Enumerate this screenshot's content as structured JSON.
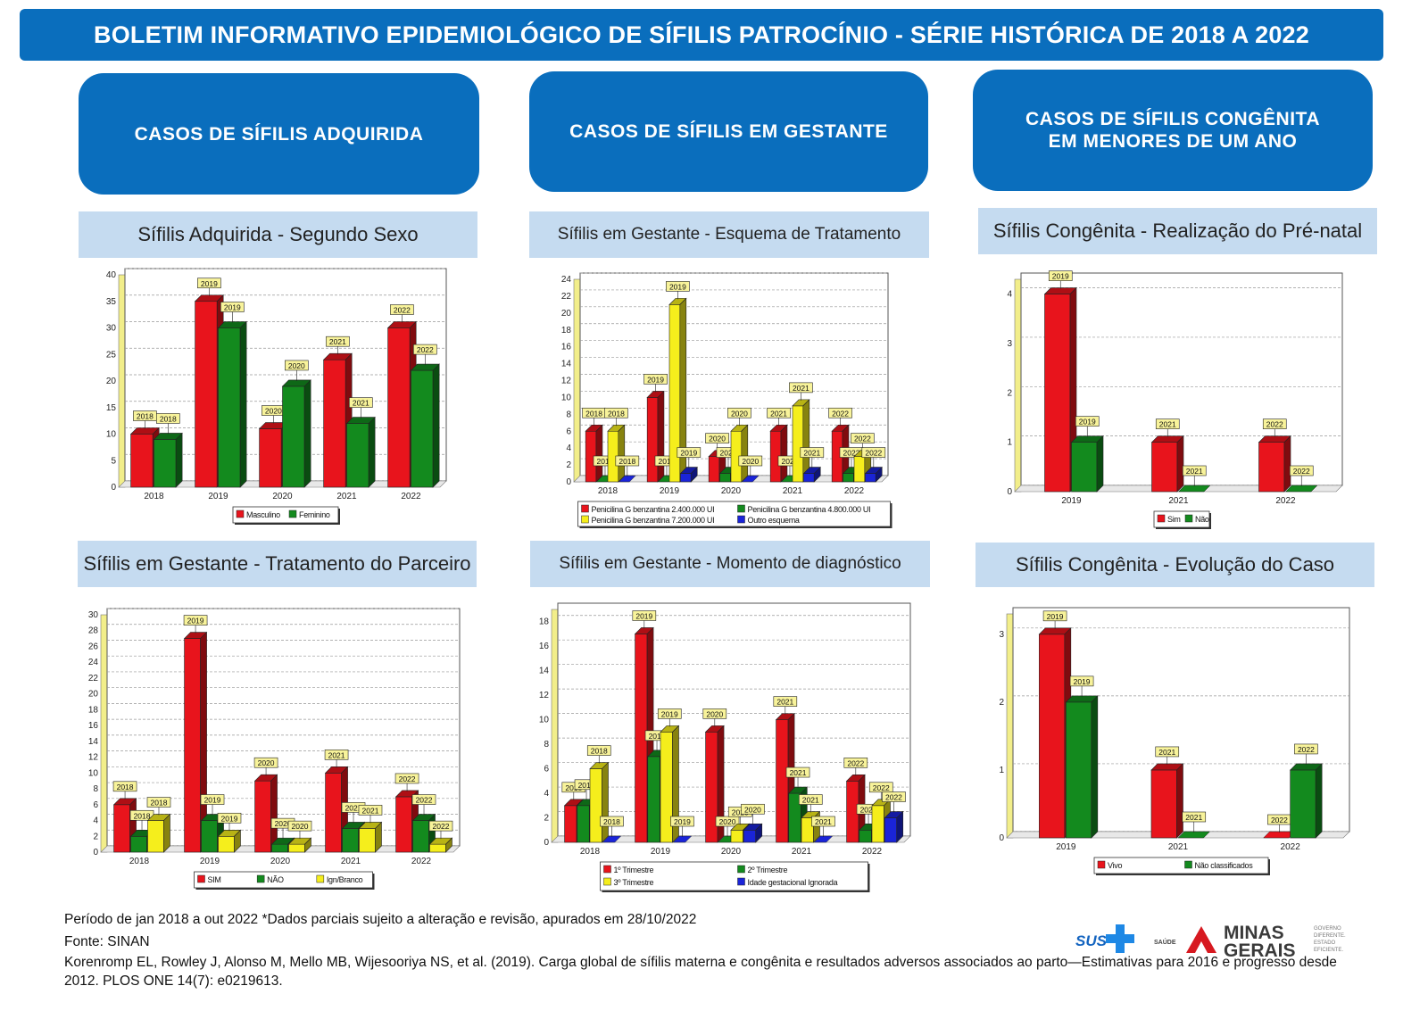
{
  "banner": {
    "title": "BOLETIM INFORMATIVO EPIDEMIOLÓGICO DE SÍFILIS PATROCÍNIO - SÉRIE HISTÓRICA DE 2018 A 2022"
  },
  "sections": [
    {
      "title": "CASOS DE SÍFILIS ADQUIRIDA"
    },
    {
      "title": "CASOS DE SÍFILIS EM GESTANTE"
    },
    {
      "title": "CASOS DE SÍFILIS CONGÊNITA\nEM MENORES DE UM ANO"
    }
  ],
  "colors": {
    "red": "#e8141c",
    "green": "#138a1e",
    "yellow": "#f5ee1c",
    "blue": "#1a24d8",
    "header_blue": "#0a6ebd",
    "title_bg": "#c5dbf0"
  },
  "chart_data": [
    {
      "type": "bar",
      "title": "Sífilis Adquirida - Segundo Sexo",
      "categories": [
        "2018",
        "2019",
        "2020",
        "2021",
        "2022"
      ],
      "ylim": [
        0,
        40
      ],
      "yticks": [
        0,
        5,
        10,
        15,
        20,
        25,
        30,
        35,
        40
      ],
      "legend_position": "bottom",
      "grid": true,
      "series": [
        {
          "name": "Masculino",
          "color": "#e8141c",
          "values": [
            10,
            35,
            11,
            24,
            30
          ]
        },
        {
          "name": "Feminino",
          "color": "#138a1e",
          "values": [
            9,
            30,
            19,
            12,
            22
          ]
        }
      ]
    },
    {
      "type": "bar",
      "title": "Sífilis em Gestante - Esquema de Tratamento",
      "categories": [
        "2018",
        "2019",
        "2020",
        "2021",
        "2022"
      ],
      "ylim": [
        0,
        24
      ],
      "yticks": [
        0,
        2,
        4,
        6,
        8,
        10,
        12,
        14,
        16,
        18,
        20,
        22,
        24
      ],
      "legend_position": "bottom",
      "grid": true,
      "series": [
        {
          "name": "Penicilina G benzantina 2.400.000 UI",
          "color": "#e8141c",
          "values": [
            6,
            10,
            3,
            6,
            6
          ]
        },
        {
          "name": "Penicilina G benzantina 4.800.000 UI",
          "color": "#138a1e",
          "values": [
            0,
            0,
            1,
            0,
            1
          ]
        },
        {
          "name": "Penicilina G benzantina 7.200.000 UI",
          "color": "#f5ee1c",
          "values": [
            6,
            21,
            6,
            9,
            3
          ]
        },
        {
          "name": "Outro esquema",
          "color": "#1a24d8",
          "values": [
            0,
            1,
            0,
            1,
            1
          ]
        }
      ]
    },
    {
      "type": "bar",
      "title": "Sífilis Congênita - Realização do Pré-natal",
      "categories": [
        "2019",
        "2021",
        "2022"
      ],
      "ylim": [
        0,
        4.3
      ],
      "yticks": [
        0,
        1,
        2,
        3,
        4
      ],
      "legend_position": "bottom",
      "grid": true,
      "series": [
        {
          "name": "Sim",
          "color": "#e8141c",
          "values": [
            4,
            1,
            1
          ]
        },
        {
          "name": "Não",
          "color": "#138a1e",
          "values": [
            1,
            0,
            0
          ]
        }
      ]
    },
    {
      "type": "bar",
      "title": "Sífilis em Gestante - Tratamento do Parceiro",
      "categories": [
        "2018",
        "2019",
        "2020",
        "2021",
        "2022"
      ],
      "ylim": [
        0,
        30
      ],
      "yticks": [
        0,
        2,
        4,
        6,
        8,
        10,
        12,
        14,
        16,
        18,
        20,
        22,
        24,
        26,
        28,
        30
      ],
      "legend_position": "bottom",
      "grid": true,
      "series": [
        {
          "name": "SIM",
          "color": "#e8141c",
          "values": [
            6,
            27,
            9,
            10,
            7
          ]
        },
        {
          "name": "NÃO",
          "color": "#138a1e",
          "values": [
            2,
            4,
            1,
            3,
            4
          ]
        },
        {
          "name": "Ign/Branco",
          "color": "#f5ee1c",
          "values": [
            4,
            2,
            1,
            3,
            1
          ]
        }
      ]
    },
    {
      "type": "bar",
      "title": "Sífilis em Gestante - Momento de diagnóstico",
      "categories": [
        "2018",
        "2019",
        "2020",
        "2021",
        "2022"
      ],
      "ylim": [
        0,
        19
      ],
      "yticks": [
        0,
        2,
        4,
        6,
        8,
        10,
        12,
        14,
        16,
        18
      ],
      "legend_position": "bottom",
      "grid": true,
      "series": [
        {
          "name": "1º Trimestre",
          "color": "#e8141c",
          "values": [
            3,
            17,
            9,
            10,
            5
          ]
        },
        {
          "name": "2º Trimestre",
          "color": "#138a1e",
          "values": [
            3,
            7,
            0,
            4,
            1
          ]
        },
        {
          "name": "3º Trimestre",
          "color": "#f5ee1c",
          "values": [
            6,
            9,
            1,
            2,
            3
          ]
        },
        {
          "name": "Idade gestacional Ignorada",
          "color": "#1a24d8",
          "values": [
            0,
            0,
            1,
            0,
            2
          ]
        }
      ]
    },
    {
      "type": "bar",
      "title": "Sífilis Congênita - Evolução do Caso",
      "categories": [
        "2019",
        "2021",
        "2022"
      ],
      "ylim": [
        0,
        3.3
      ],
      "yticks": [
        0,
        1,
        2,
        3
      ],
      "legend_position": "bottom",
      "grid": true,
      "series": [
        {
          "name": "Vivo",
          "color": "#e8141c",
          "values": [
            3,
            1,
            0
          ]
        },
        {
          "name": "Não classificados",
          "color": "#138a1e",
          "values": [
            2,
            0,
            1
          ]
        }
      ]
    }
  ],
  "footer": {
    "line1": "Período de jan 2018 a out 2022 *Dados parciais sujeito a alteração e revisão, apurados em 28/10/2022",
    "line2": "Fonte: SINAN",
    "line3": "Korenromp EL, Rowley J, Alonso M, Mello MB, Wijesooriya NS, et al. (2019). Carga global de sífilis materna e congênita e resultados adversos associados ao parto—Estimativas para 2016 e progresso desde 2012. PLOS ONE 14(7): e0219613."
  },
  "logos": {
    "sus": "SUS",
    "saude": "SAÚDE",
    "minas": "MINAS",
    "gerais": "GERAIS",
    "governo": "GOVERNO DIFERENTE. ESTADO EFICIENTE."
  }
}
